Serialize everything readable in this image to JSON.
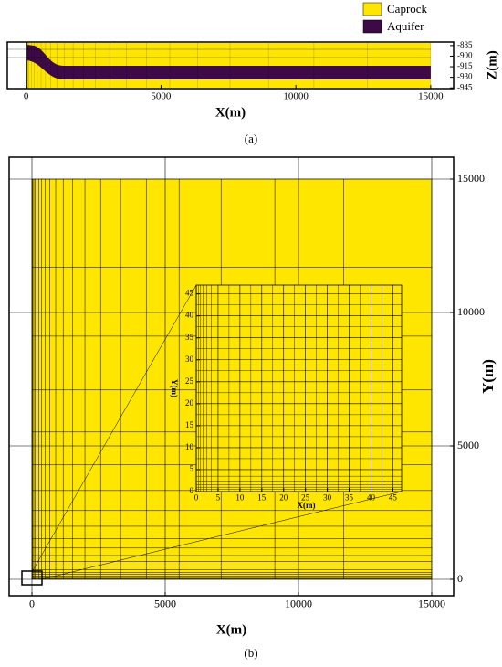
{
  "chart_data": [
    {
      "type": "mesh",
      "caption": "(a)",
      "xlabel": "X(m)",
      "ylabel": "Z(m)",
      "legend": [
        {
          "name": "Caprock",
          "color": "#ffe600"
        },
        {
          "name": "Aquifer",
          "color": "#3d0a47"
        }
      ],
      "xlim": [
        -700,
        15850
      ],
      "xticks": [
        0,
        5000,
        10000,
        15000
      ],
      "ylim": [
        -946,
        -880
      ],
      "yticks": [
        -885,
        -900,
        -915,
        -930,
        -945
      ]
    },
    {
      "type": "mesh",
      "caption": "(b)",
      "xlabel": "X(m)",
      "ylabel": "Y(m)",
      "color": "#ffe600",
      "grid": true,
      "xlim": [
        -856,
        15822
      ],
      "xticks": [
        0,
        5000,
        10000,
        15000
      ],
      "ylim": [
        -616,
        15822
      ],
      "yticks": [
        0,
        5000,
        10000,
        15000
      ]
    },
    {
      "type": "inset",
      "xlabel": "X(m)",
      "ylabel": "Y(m)",
      "color": "#ffe600",
      "grid": true,
      "xlim": [
        0,
        47
      ],
      "xticks": [
        0,
        5,
        10,
        15,
        20,
        25,
        30,
        35,
        40,
        45
      ],
      "ylim": [
        0,
        47
      ],
      "yticks": [
        0,
        5,
        10,
        15,
        20,
        25,
        30,
        35,
        40,
        45
      ]
    }
  ]
}
